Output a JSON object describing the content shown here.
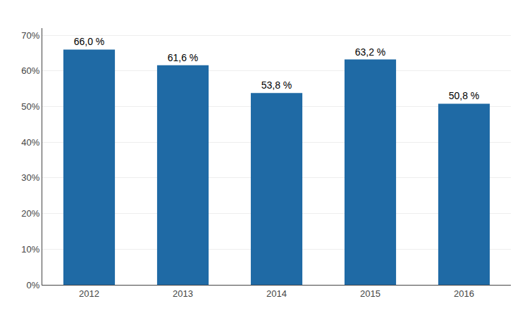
{
  "chart_data": {
    "type": "bar",
    "categories": [
      "2012",
      "2013",
      "2014",
      "2015",
      "2016"
    ],
    "values": [
      0.66,
      0.616,
      0.538,
      0.632,
      0.508
    ],
    "value_labels": [
      "66,0 %",
      "61,6 %",
      "53,8 %",
      "63,2 %",
      "50,8 %"
    ],
    "data_labels": true,
    "color": "#1F6AA5",
    "ylim": [
      0,
      0.72
    ],
    "yticks": [
      {
        "value": 0.0,
        "label": "0%"
      },
      {
        "value": 0.1,
        "label": "10%"
      },
      {
        "value": 0.2,
        "label": "20%"
      },
      {
        "value": 0.3,
        "label": "30%"
      },
      {
        "value": 0.4,
        "label": "40%"
      },
      {
        "value": 0.5,
        "label": "50%"
      },
      {
        "value": 0.6,
        "label": "60%"
      },
      {
        "value": 0.7,
        "label": "70%"
      }
    ],
    "grid": true
  }
}
